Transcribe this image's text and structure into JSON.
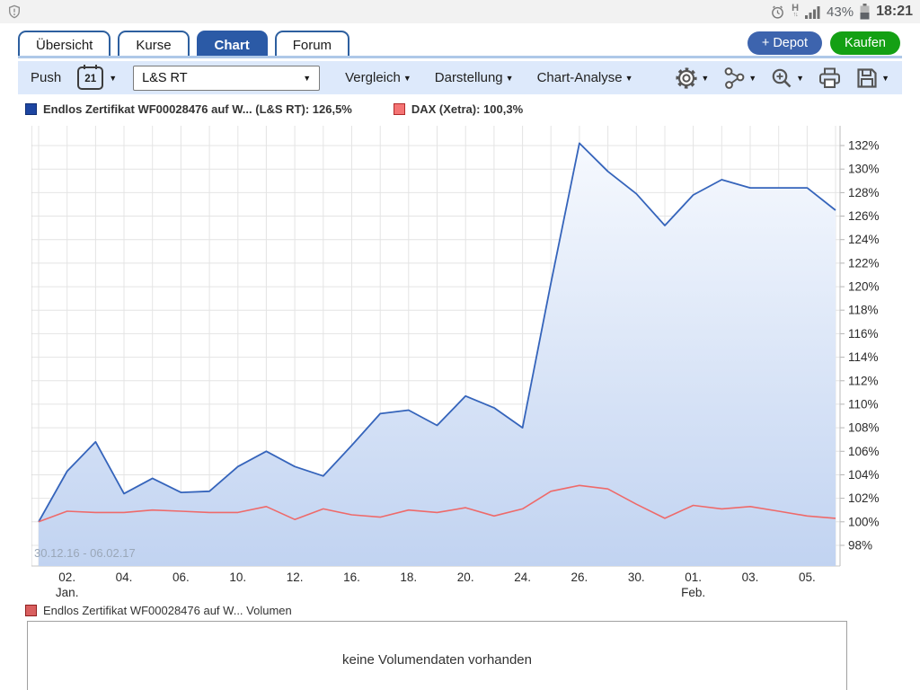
{
  "status_bar": {
    "battery": "43%",
    "time": "18:21",
    "network": "H"
  },
  "icons": {
    "chevron_down": "▼"
  },
  "tabs": [
    {
      "label": "Übersicht",
      "active": false
    },
    {
      "label": "Kurse",
      "active": false
    },
    {
      "label": "Chart",
      "active": true
    },
    {
      "label": "Forum",
      "active": false
    }
  ],
  "actions": {
    "depot_label": "+ Depot",
    "depot_color": "#3d64ae",
    "kaufen_label": "Kaufen",
    "kaufen_color": "#14a014"
  },
  "toolbar": {
    "push_label": "Push",
    "calendar_value": "21",
    "instrument_select": "L&S RT",
    "menus": [
      "Vergleich",
      "Darstellung",
      "Chart-Analyse"
    ],
    "icon_names": [
      "gear-icon",
      "indicators-icon",
      "zoom-in-icon",
      "printer-icon",
      "save-icon"
    ]
  },
  "legend": [
    {
      "label": "Endlos Zertifikat WF00028476 auf W... (L&S RT): 126,5%",
      "color": "#1d45a1",
      "border": "#0f2d73"
    },
    {
      "label": "DAX (Xetra): 100,3%",
      "color": "#f47474",
      "border": "#b22b2b"
    }
  ],
  "chart_data": {
    "type": "area",
    "x": [
      "30.12.16",
      "02.01.17",
      "03.01.17",
      "04.01.17",
      "05.01.17",
      "06.01.17",
      "09.01.17",
      "10.01.17",
      "11.01.17",
      "12.01.17",
      "13.01.17",
      "16.01.17",
      "17.01.17",
      "18.01.17",
      "19.01.17",
      "20.01.17",
      "23.01.17",
      "24.01.17",
      "25.01.17",
      "26.01.17",
      "27.01.17",
      "30.01.17",
      "31.01.17",
      "01.02.17",
      "02.02.17",
      "03.02.17",
      "04.02.17",
      "05.02.17",
      "06.02.17"
    ],
    "series": [
      {
        "name": "Endlos Zertifikat WF00028476 auf W... (L&S RT)",
        "color": "#3564bb",
        "fill": true,
        "values": [
          100.0,
          104.3,
          106.8,
          102.4,
          103.7,
          102.5,
          102.6,
          104.7,
          106.0,
          104.7,
          103.9,
          106.5,
          109.2,
          109.5,
          108.2,
          110.7,
          109.7,
          108.0,
          120.3,
          132.2,
          129.8,
          127.9,
          125.2,
          127.8,
          129.1,
          128.4,
          128.4,
          128.4,
          126.5
        ]
      },
      {
        "name": "DAX (Xetra)",
        "color": "#ee6a6a",
        "fill": false,
        "values": [
          100.0,
          100.9,
          100.8,
          100.8,
          101.0,
          100.9,
          100.8,
          100.8,
          101.3,
          100.2,
          101.1,
          100.6,
          100.4,
          101.0,
          100.8,
          101.2,
          100.5,
          101.1,
          102.6,
          103.1,
          102.8,
          101.5,
          100.3,
          101.4,
          101.1,
          101.3,
          100.9,
          100.5,
          100.3
        ]
      }
    ],
    "yticks": [
      98,
      100,
      102,
      104,
      106,
      108,
      110,
      112,
      114,
      116,
      118,
      120,
      122,
      124,
      126,
      128,
      130,
      132
    ],
    "ylim": [
      96.1,
      133.7
    ],
    "ylabel_suffix": "%",
    "x_labels": [
      {
        "index": 1,
        "label": "02.",
        "sub": "Jan."
      },
      {
        "index": 3,
        "label": "04."
      },
      {
        "index": 5,
        "label": "06."
      },
      {
        "index": 7,
        "label": "10."
      },
      {
        "index": 9,
        "label": "12."
      },
      {
        "index": 11,
        "label": "16."
      },
      {
        "index": 13,
        "label": "18."
      },
      {
        "index": 15,
        "label": "20."
      },
      {
        "index": 17,
        "label": "24."
      },
      {
        "index": 19,
        "label": "26."
      },
      {
        "index": 21,
        "label": "30."
      },
      {
        "index": 23,
        "label": "01.",
        "sub": "Feb."
      },
      {
        "index": 25,
        "label": "03."
      },
      {
        "index": 27,
        "label": "05."
      }
    ],
    "range_label": "30.12.16 - 06.02.17",
    "grid": true,
    "grid_color": "#e4e4e4",
    "area_fill_top": "#f6f9fe",
    "area_fill_bottom": "#c1d3f1",
    "legend_position": "top-left"
  },
  "volume": {
    "legend_label": "Endlos Zertifikat WF00028476 auf W... Volumen",
    "swatch_color": "#d95f5f",
    "swatch_border": "#8f1f1f",
    "message": "keine Volumendaten vorhanden"
  }
}
